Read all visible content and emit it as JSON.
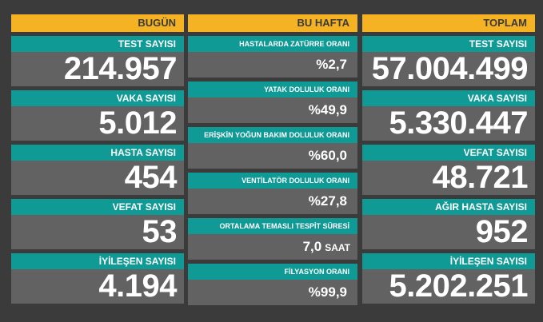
{
  "columns": {
    "left": {
      "title": "BUGÜN",
      "cards": [
        {
          "label": "TEST SAYISI",
          "value": "214.957"
        },
        {
          "label": "VAKA SAYISI",
          "value": "5.012"
        },
        {
          "label": "HASTA SAYISI",
          "value": "454"
        },
        {
          "label": "VEFAT SAYISI",
          "value": "53"
        },
        {
          "label": "İYİLEŞEN SAYISI",
          "value": "4.194"
        }
      ]
    },
    "mid": {
      "title": "BU HAFTA",
      "cards": [
        {
          "label": "HASTALARDA ZATÜRRE ORANI",
          "value": "%2,7",
          "unit": ""
        },
        {
          "label": "YATAK DOLULUK ORANI",
          "value": "%49,9",
          "unit": ""
        },
        {
          "label": "ERİŞKİN YOĞUN BAKIM DOLULUK ORANI",
          "value": "%60,0",
          "unit": ""
        },
        {
          "label": "VENTİLATÖR DOLULUK ORANI",
          "value": "%27,8",
          "unit": ""
        },
        {
          "label": "ORTALAMA TEMASLI TESPİT SÜRESİ",
          "value": "7,0",
          "unit": "SAAT"
        },
        {
          "label": "FİLYASYON ORANI",
          "value": "%99,9",
          "unit": ""
        }
      ]
    },
    "right": {
      "title": "TOPLAM",
      "cards": [
        {
          "label": "TEST SAYISI",
          "value": "57.004.499"
        },
        {
          "label": "VAKA SAYISI",
          "value": "5.330.447"
        },
        {
          "label": "VEFAT SAYISI",
          "value": "48.721"
        },
        {
          "label": "AĞIR HASTA SAYISI",
          "value": "952"
        },
        {
          "label": "İYİLEŞEN SAYISI",
          "value": "5.202.251"
        }
      ]
    }
  },
  "colors": {
    "header": "#f5b324",
    "label": "#0f9a96",
    "card": "#626262",
    "background": "#3b3b3b"
  }
}
